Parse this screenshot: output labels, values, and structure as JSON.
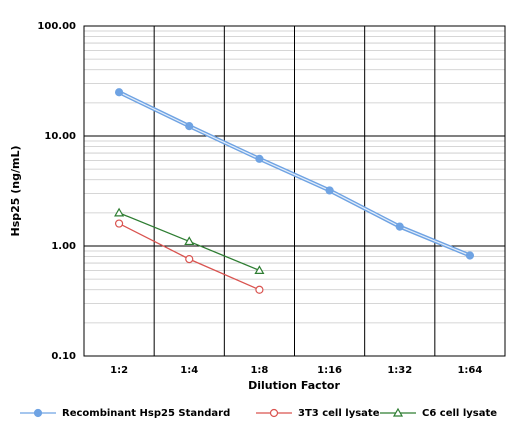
{
  "chart_data": {
    "type": "line",
    "y_label": "Hsp25 (ng/mL)",
    "x_label": "Dilution Factor",
    "categories": [
      "1:2",
      "1:4",
      "1:8",
      "1:16",
      "1:32",
      "1:64"
    ],
    "series": [
      {
        "name": "Recombinant Hsp25 Standard",
        "color": "#6fa3e3",
        "marker": "circle-filled",
        "values": [
          25,
          12.3,
          6.2,
          3.2,
          1.5,
          0.82
        ]
      },
      {
        "name": "3T3 cell lysate",
        "color": "#d9534f",
        "marker": "circle-open",
        "values": [
          1.6,
          0.76,
          0.4,
          null,
          null,
          null
        ]
      },
      {
        "name": "C6 cell lysate",
        "color": "#2e7d32",
        "marker": "triangle-open",
        "values": [
          2.0,
          1.1,
          0.6,
          null,
          null,
          null
        ]
      }
    ],
    "ylim": [
      0.1,
      100
    ],
    "log_y": true,
    "yticks": [
      {
        "value": 100,
        "label": "100.00"
      },
      {
        "value": 10,
        "label": "10.00"
      },
      {
        "value": 1,
        "label": "1.00"
      },
      {
        "value": 0.1,
        "label": "0.10"
      }
    ],
    "grid": true,
    "minor_grid": true,
    "legend": "bottom"
  }
}
